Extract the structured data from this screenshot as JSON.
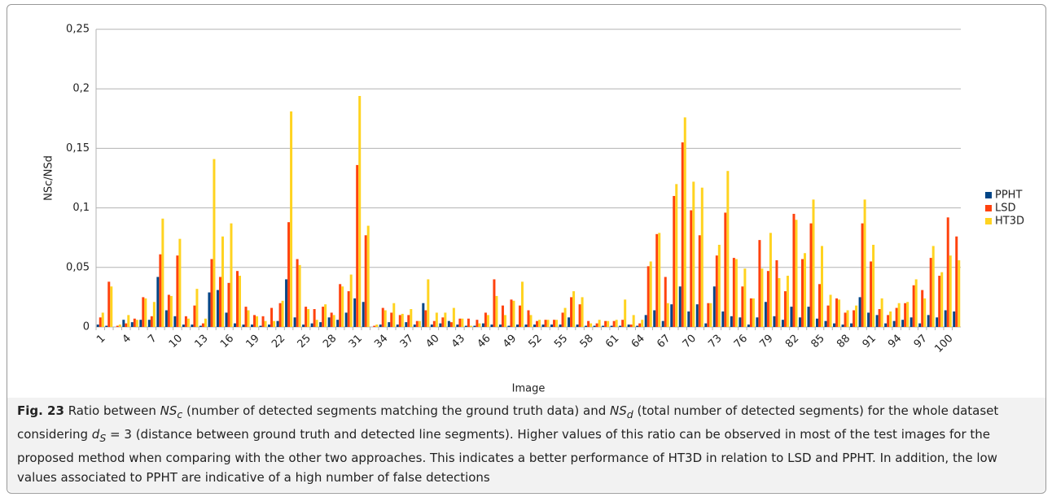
{
  "chart_data": {
    "type": "bar",
    "categories": [
      "1",
      null,
      null,
      "4",
      null,
      null,
      "7",
      null,
      null,
      "10",
      null,
      null,
      "13",
      null,
      null,
      "16",
      null,
      null,
      "19",
      null,
      null,
      "22",
      null,
      null,
      "25",
      null,
      null,
      "28",
      null,
      null,
      "31",
      null,
      null,
      "34",
      null,
      null,
      "37",
      null,
      null,
      "40",
      null,
      null,
      "43",
      null,
      null,
      "46",
      null,
      null,
      "49",
      null,
      null,
      "52",
      null,
      null,
      "55",
      null,
      null,
      "58",
      null,
      null,
      "61",
      null,
      null,
      "64",
      null,
      null,
      "67",
      null,
      null,
      "70",
      null,
      null,
      "73",
      null,
      null,
      "76",
      null,
      null,
      "79",
      null,
      null,
      "82",
      null,
      null,
      "85",
      null,
      null,
      "88",
      null,
      null,
      "91",
      null,
      null,
      "94",
      null,
      null,
      "97",
      null,
      null,
      "100",
      null
    ],
    "series": [
      {
        "name": "PPHT",
        "color": "#004586",
        "values": [
          0.002,
          0.001,
          0,
          0.006,
          0.004,
          0.006,
          0.006,
          0.042,
          0.014,
          0.009,
          0.002,
          0.002,
          0.001,
          0.029,
          0.031,
          0.012,
          0.003,
          0.002,
          0.002,
          0.001,
          0.002,
          0.005,
          0.04,
          0.008,
          0.002,
          0.003,
          0.004,
          0.008,
          0.006,
          0.012,
          0.024,
          0.021,
          0,
          0.002,
          0.004,
          0.002,
          0.004,
          0.002,
          0.02,
          0.002,
          0.003,
          0.005,
          0.002,
          0.001,
          0.001,
          0.003,
          0.002,
          0.002,
          0.001,
          0.002,
          0.002,
          0.002,
          0.002,
          0.002,
          0.002,
          0.008,
          0.002,
          0.001,
          0.001,
          0.001,
          0.001,
          0.001,
          0.002,
          0.001,
          0.01,
          0.014,
          0.005,
          0.019,
          0.034,
          0.013,
          0.019,
          0.003,
          0.034,
          0.013,
          0.009,
          0.008,
          0.002,
          0.008,
          0.021,
          0.009,
          0.006,
          0.017,
          0.008,
          0.017,
          0.007,
          0.005,
          0.003,
          0.002,
          0.003,
          0.025,
          0.012,
          0.01,
          0.003,
          0.005,
          0.006,
          0.008,
          0.003,
          0.01,
          0.008,
          0.014,
          0.013
        ]
      },
      {
        "name": "LSD",
        "color": "#ff420e",
        "values": [
          0.008,
          0.038,
          0.001,
          0.003,
          0.007,
          0.025,
          0.009,
          0.061,
          0.027,
          0.06,
          0.009,
          0.018,
          0.003,
          0.057,
          0.042,
          0.037,
          0.047,
          0.017,
          0.01,
          0.009,
          0.016,
          0.02,
          0.088,
          0.057,
          0.017,
          0.015,
          0.017,
          0.012,
          0.036,
          0.03,
          0.136,
          0.077,
          0.001,
          0.016,
          0.012,
          0.01,
          0.01,
          0.005,
          0.014,
          0.005,
          0.008,
          0.004,
          0.007,
          0.007,
          0.006,
          0.012,
          0.04,
          0.018,
          0.023,
          0.018,
          0.014,
          0.005,
          0.006,
          0.006,
          0.012,
          0.025,
          0.019,
          0.005,
          0.003,
          0.005,
          0.005,
          0.006,
          0.002,
          0.003,
          0.051,
          0.078,
          0.042,
          0.11,
          0.155,
          0.098,
          0.077,
          0.02,
          0.06,
          0.096,
          0.058,
          0.034,
          0.024,
          0.073,
          0.047,
          0.056,
          0.03,
          0.095,
          0.057,
          0.087,
          0.036,
          0.018,
          0.024,
          0.012,
          0.014,
          0.087,
          0.055,
          0.015,
          0.01,
          0.016,
          0.02,
          0.035,
          0.031,
          0.058,
          0.043,
          0.092,
          0.076
        ]
      },
      {
        "name": "HT3D",
        "color": "#ffd320",
        "values": [
          0.012,
          0.034,
          0.002,
          0.01,
          0.006,
          0.024,
          0.021,
          0.091,
          0.026,
          0.074,
          0.007,
          0.032,
          0.007,
          0.141,
          0.076,
          0.087,
          0.043,
          0.014,
          0.009,
          0.005,
          0.005,
          0.022,
          0.181,
          0.052,
          0.015,
          0.006,
          0.019,
          0.01,
          0.034,
          0.044,
          0.194,
          0.085,
          0.002,
          0.014,
          0.02,
          0.011,
          0.015,
          0.005,
          0.04,
          0.012,
          0.012,
          0.016,
          0.007,
          0.001,
          0.003,
          0.01,
          0.026,
          0.01,
          0.022,
          0.038,
          0.01,
          0.006,
          0.006,
          0.006,
          0.016,
          0.03,
          0.025,
          0.003,
          0.006,
          0.005,
          0.006,
          0.023,
          0.01,
          0.006,
          0.055,
          0.079,
          0.02,
          0.12,
          0.176,
          0.122,
          0.117,
          0.02,
          0.069,
          0.131,
          0.057,
          0.049,
          0.024,
          0.049,
          0.079,
          0.041,
          0.043,
          0.09,
          0.062,
          0.107,
          0.068,
          0.027,
          0.023,
          0.014,
          0.018,
          0.107,
          0.069,
          0.024,
          0.013,
          0.02,
          0.021,
          0.04,
          0.024,
          0.068,
          0.046,
          0.06,
          0.056
        ]
      }
    ],
    "ylim": [
      0,
      0.25
    ],
    "yticks": [
      0,
      {
        "value": 0.05,
        "label": "0,05"
      },
      {
        "value": 0.1,
        "label": "0,1"
      },
      {
        "value": 0.15,
        "label": "0,15"
      },
      {
        "value": 0.2,
        "label": "0,2"
      },
      {
        "value": 0.25,
        "label": "0,25"
      }
    ],
    "ylabel": "NSc/NSd",
    "xlabel": "Image",
    "grid": true,
    "legend": "right"
  },
  "caption": {
    "label": "Fig. 23",
    "parts": [
      "Ratio between ",
      "NS",
      "c",
      " (number of detected segments matching the ground truth data) and ",
      "NS",
      "d",
      " (total number of detected segments) for the whole dataset considering ",
      "d",
      "S",
      " = 3",
      " (distance between ground truth and detected line segments). Higher values of this ratio can be observed in most of the test images for the proposed method when comparing with the other two approaches. This indicates a better performance of HT3D in relation to LSD and PPHT. In addition, the low values associated to PPHT are indicative of a high number of false detections"
    ]
  }
}
